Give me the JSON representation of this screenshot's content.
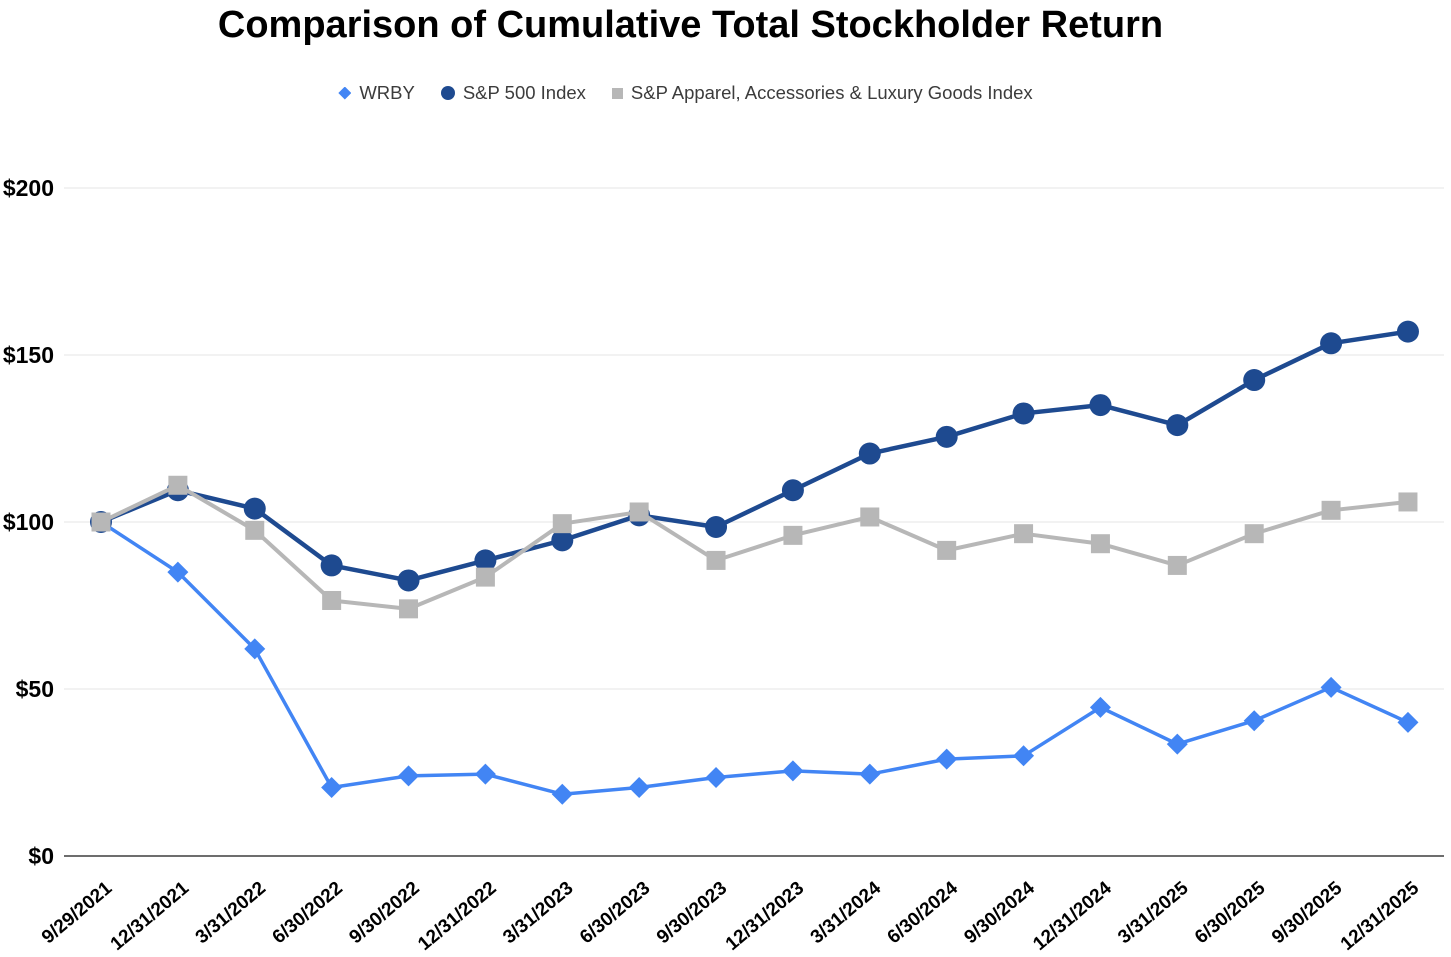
{
  "chart_data": {
    "type": "line",
    "title": "Comparison of Cumulative Total Stockholder Return",
    "categories": [
      "9/29/2021",
      "12/31/2021",
      "3/31/2022",
      "6/30/2022",
      "9/30/2022",
      "12/31/2022",
      "3/31/2023",
      "6/30/2023",
      "9/30/2023",
      "12/31/2023",
      "3/31/2024",
      "6/30/2024",
      "9/30/2024",
      "12/31/2024",
      "3/31/2025",
      "6/30/2025",
      "9/30/2025",
      "12/31/2025"
    ],
    "series": [
      {
        "name": "WRBY",
        "color": "#4285f4",
        "marker": "diamond",
        "values": [
          100,
          85,
          62,
          20.5,
          24,
          24.5,
          18.5,
          20.5,
          23.5,
          25.5,
          24.5,
          29,
          30,
          44.5,
          33.5,
          40.5,
          50.5,
          40
        ]
      },
      {
        "name": "S&P 500 Index",
        "color": "#1e4a90",
        "marker": "circle",
        "values": [
          100,
          109.5,
          104,
          87,
          82.5,
          88.5,
          94.5,
          102,
          98.5,
          109.5,
          120.5,
          125.5,
          132.5,
          135,
          129,
          142.5,
          153.5,
          157
        ]
      },
      {
        "name": "S&P Apparel, Accessories & Luxury Goods Index",
        "color": "#b7b7b7",
        "marker": "square",
        "values": [
          100,
          111,
          97.5,
          76.5,
          74,
          83.5,
          99.5,
          103,
          88.5,
          96,
          101.5,
          91.5,
          96.5,
          93.5,
          87,
          96.5,
          103.5,
          106
        ]
      }
    ],
    "xlabel": "",
    "ylabel": "",
    "ylim": [
      0,
      200
    ],
    "yticks": [
      {
        "value": 0,
        "label": "$0"
      },
      {
        "value": 50,
        "label": "$50"
      },
      {
        "value": 100,
        "label": "$100"
      },
      {
        "value": 150,
        "label": "$150"
      },
      {
        "value": 200,
        "label": "$200"
      }
    ],
    "grid": "horizontal",
    "legend_position": "top"
  },
  "colors": {
    "background": "#ffffff",
    "gridline": "#e6e6e6",
    "axis_line": "#6d6d6d",
    "tick_label": "#000000",
    "legend_text": "#3c3c3c",
    "title_text": "#000000"
  }
}
